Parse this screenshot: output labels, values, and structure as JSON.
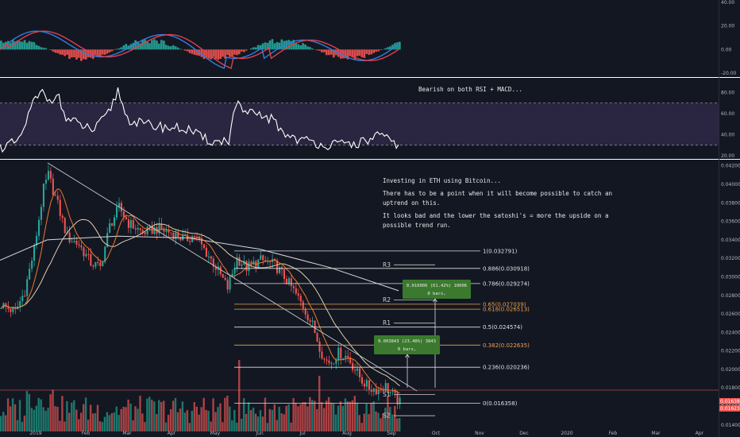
{
  "chart_data": [
    {
      "type": "bar",
      "panel": "macd",
      "yticks": [
        "40.00",
        "20.00",
        "0.00",
        "-20.00"
      ],
      "ylim": [
        -20,
        40
      ]
    },
    {
      "type": "line",
      "panel": "rsi",
      "annotation": "Bearish on both RSI + MACD...",
      "yticks": [
        "80.00",
        "60.00",
        "40.00",
        "20.00"
      ],
      "band": [
        30,
        70
      ],
      "ylim": [
        20,
        90
      ]
    },
    {
      "type": "candlestick",
      "panel": "price",
      "title": "",
      "annotation": [
        "Investing in ETH using Bitcoin...",
        "There has to be a point when it will become possible to catch an",
        "uptrend on this.",
        "It looks bad and the lower the satoshi's = more the upside on a",
        "possible trend run."
      ],
      "yticks": [
        "0.042000",
        "0.040000",
        "0.038000",
        "0.036000",
        "0.034000",
        "0.032000",
        "0.030000",
        "0.028000",
        "0.026000",
        "0.024000",
        "0.022000",
        "0.020000",
        "0.018000",
        "0.016000",
        "0.014000"
      ],
      "ylim": [
        0.0133,
        0.0424
      ],
      "last_price": "0.016389",
      "second_price": "0.016232",
      "fib_levels": [
        {
          "label": "1(0.032791)",
          "value": 0.032791,
          "color": "#e0e0e0"
        },
        {
          "label": "0.886(0.030918)",
          "value": 0.030918,
          "color": "#e0e0e0"
        },
        {
          "label": "0.786(0.029274)",
          "value": 0.029274,
          "color": "#e0e0e0"
        },
        {
          "label": "0.65(0.027039)",
          "value": 0.027039,
          "color": "#f0a050"
        },
        {
          "label": "0.618(0.026513)",
          "value": 0.026513,
          "color": "#f0a050"
        },
        {
          "label": "0.5(0.024574)",
          "value": 0.024574,
          "color": "#e0e0e0"
        },
        {
          "label": "0.382(0.022635)",
          "value": 0.022635,
          "color": "#f0a050"
        },
        {
          "label": "0.236(0.020236)",
          "value": 0.020236,
          "color": "#e0e0e0"
        },
        {
          "label": "0(0.016358)",
          "value": 0.016358,
          "color": "#e0e0e0"
        }
      ],
      "pivots": [
        {
          "label": "R3",
          "value": 0.0313
        },
        {
          "label": "R2",
          "value": 0.0275
        },
        {
          "label": "R1",
          "value": 0.025
        },
        {
          "label": "S1",
          "value": 0.0173
        },
        {
          "label": "S2",
          "value": 0.015
        }
      ],
      "measure_boxes": [
        {
          "line1": "0.010006 (61.42%) 10006",
          "line2": "0 bars,"
        },
        {
          "line1": "0.003843 (23.40%) 3843",
          "line2": "0 bars,"
        }
      ]
    }
  ],
  "x_axis_labels": [
    "2019",
    "Feb",
    "Mar",
    "Apr",
    "May",
    "Jun",
    "Jul",
    "Aug",
    "Sep",
    "Oct",
    "Nov",
    "Dec",
    "2020",
    "Feb",
    "Mar",
    "Apr"
  ]
}
